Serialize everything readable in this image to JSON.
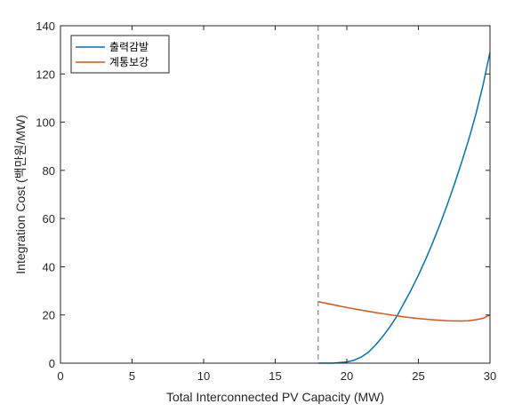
{
  "chart_data": {
    "type": "line",
    "title": "",
    "xlabel": "Total Interconnected PV Capacity (MW)",
    "ylabel": "Integration Cost (백만원/MW)",
    "xlim": [
      0,
      30
    ],
    "ylim": [
      0,
      140
    ],
    "xticks": [
      0,
      5,
      10,
      15,
      20,
      25,
      30
    ],
    "yticks": [
      0,
      20,
      40,
      60,
      80,
      100,
      120,
      140
    ],
    "xtick_labels": [
      "0",
      "5",
      "10",
      "15",
      "20",
      "25",
      "30"
    ],
    "ytick_labels": [
      "0",
      "20",
      "40",
      "60",
      "80",
      "100",
      "120",
      "140"
    ],
    "grid": false,
    "legend_position": "top-left",
    "vline": {
      "x": 18,
      "style": "dashed",
      "color": "#707070"
    },
    "series": [
      {
        "name": "출력감발",
        "color": "#0072BD",
        "x": [
          18,
          19,
          20,
          20.5,
          21,
          21.5,
          22,
          22.5,
          23,
          23.5,
          24,
          24.5,
          25,
          25.5,
          26,
          26.5,
          27,
          27.5,
          28,
          28.5,
          29,
          29.5,
          30
        ],
        "y": [
          0,
          0,
          0.5,
          1.2,
          2.5,
          4.5,
          7.5,
          11,
          15,
          19.5,
          25,
          30.5,
          36.5,
          43,
          50,
          57.5,
          65.5,
          74,
          83,
          92.5,
          103,
          115,
          129
        ]
      },
      {
        "name": "계통보강",
        "color": "#D95319",
        "x": [
          18,
          19,
          20,
          21,
          22,
          23,
          24,
          25,
          26,
          27,
          28,
          28.5,
          29,
          29.5,
          30
        ],
        "y": [
          25.5,
          24.3,
          23.1,
          22,
          21,
          20.1,
          19.2,
          18.5,
          18,
          17.6,
          17.5,
          17.6,
          18,
          18.6,
          20
        ]
      }
    ]
  }
}
